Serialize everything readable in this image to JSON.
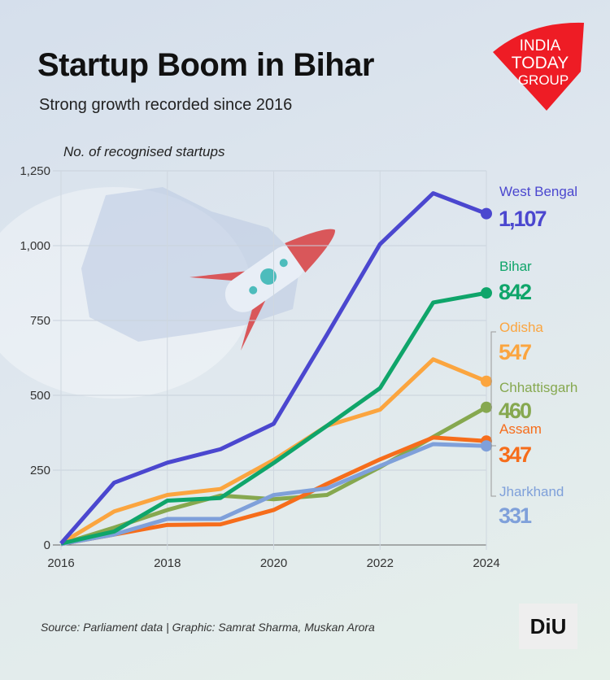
{
  "title": "Startup Boom in Bihar",
  "subtitle": "Strong growth recorded since 2016",
  "source": "Source: Parliament data | Graphic: Samrat Sharma, Muskan Arora",
  "logo_text": "INDIA TODAY GROUP",
  "diu_logo_text": "DiU",
  "chart_data": {
    "type": "line",
    "title": "Startup Boom in Bihar",
    "ylabel": "No. of recognised startups",
    "xlabel": "",
    "x": [
      2016,
      2017,
      2018,
      2019,
      2020,
      2021,
      2022,
      2023,
      2024
    ],
    "xticks": [
      "2016",
      "2018",
      "2020",
      "2022",
      "2024"
    ],
    "xticks_values": [
      2016,
      2018,
      2020,
      2022,
      2024
    ],
    "yticks": [
      "0",
      "250",
      "500",
      "750",
      "1,000",
      "1,250"
    ],
    "yticks_values": [
      0,
      250,
      500,
      750,
      1000,
      1250
    ],
    "ylim": [
      0,
      1250
    ],
    "grid": "horizontal",
    "legend": "direct labels at right",
    "series": [
      {
        "name": "West Bengal",
        "label": "1,107",
        "color": "#4b47cf",
        "values": [
          5,
          208,
          275,
          320,
          405,
          702,
          1005,
          1175,
          1107
        ]
      },
      {
        "name": "Bihar",
        "label": "842",
        "color": "#0fa56a",
        "values": [
          5,
          45,
          148,
          157,
          274,
          398,
          524,
          810,
          842
        ]
      },
      {
        "name": "Odisha",
        "label": "547",
        "color": "#fba53f",
        "values": [
          5,
          112,
          167,
          187,
          284,
          398,
          452,
          620,
          547
        ]
      },
      {
        "name": "Chhattisgarh",
        "label": "460",
        "color": "#86a84f",
        "values": [
          3,
          58,
          117,
          165,
          153,
          167,
          260,
          361,
          460
        ]
      },
      {
        "name": "Assam",
        "label": "347",
        "color": "#f66d1b",
        "values": [
          3,
          35,
          67,
          69,
          117,
          204,
          286,
          359,
          347
        ]
      },
      {
        "name": "Jharkhand",
        "label": "331",
        "color": "#7fa0da",
        "values": [
          3,
          35,
          87,
          87,
          167,
          189,
          264,
          337,
          331
        ]
      }
    ]
  }
}
